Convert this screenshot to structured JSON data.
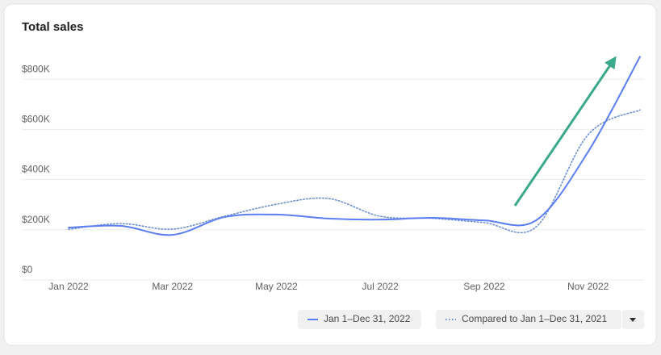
{
  "chart_data": {
    "type": "line",
    "title": "Total sales",
    "categories": [
      "Jan 2022",
      null,
      "Mar 2022",
      null,
      "May 2022",
      null,
      "Jul 2022",
      null,
      "Sep 2022",
      null,
      "Nov 2022",
      null
    ],
    "series": [
      {
        "name": "Jan 1–Dec 31, 2022",
        "color": "#5b7ff2",
        "style": "solid",
        "values": [
          170000,
          177000,
          141000,
          212000,
          222000,
          206000,
          202000,
          209000,
          199000,
          199000,
          472000,
          851000
        ]
      },
      {
        "name": "Compared to Jan 1–Dec 31, 2021",
        "color": "#6b8fd1",
        "style": "dotted",
        "values": [
          163000,
          186000,
          164000,
          215000,
          263000,
          286000,
          215000,
          207000,
          190000,
          173000,
          540000,
          639000
        ]
      }
    ],
    "ylim": [
      0,
      900000
    ],
    "yticks": [
      {
        "value": 0,
        "label": "$0"
      },
      {
        "value": 200000,
        "label": "$200K"
      },
      {
        "value": 400000,
        "label": "$400K"
      },
      {
        "value": 600000,
        "label": "$600K"
      },
      {
        "value": 800000,
        "label": "$800K"
      }
    ],
    "grid": true
  }
}
